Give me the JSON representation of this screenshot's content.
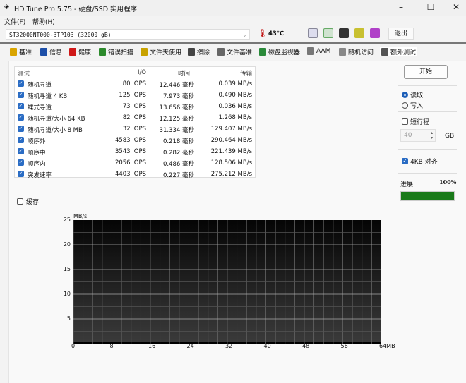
{
  "window": {
    "title": "HD Tune Pro 5.75 - 硬盘/SSD 实用程序",
    "minimize": "–",
    "maximize": "☐",
    "close": "✕"
  },
  "menu": [
    "文件(F)",
    "帮助(H)"
  ],
  "drive": {
    "selected": "ST32000NT000-3TP103 (32000 gB)",
    "temperature": "43℃"
  },
  "toolbar": {
    "exit_label": "退出",
    "icons": [
      "copy-text-icon",
      "copy-image-icon",
      "screenshot-icon",
      "options-icon",
      "save-icon"
    ]
  },
  "tabs": [
    {
      "label": "基准",
      "color": "#d9a400"
    },
    {
      "label": "信息",
      "color": "#1d4fa8"
    },
    {
      "label": "健康",
      "color": "#d01818"
    },
    {
      "label": "错误扫描",
      "color": "#2c8a2c"
    },
    {
      "label": "文件夹使用",
      "color": "#c8a200"
    },
    {
      "label": "擦除",
      "color": "#444"
    },
    {
      "label": "文件基准",
      "color": "#666"
    },
    {
      "label": "磁盘监视器",
      "color": "#2a8a3a"
    },
    {
      "label": "AAM",
      "color": "#777"
    },
    {
      "label": "随机访问",
      "color": "#888"
    },
    {
      "label": "额外测试",
      "color": "#555"
    }
  ],
  "table": {
    "headers": [
      "测试",
      "I/O",
      "时间",
      "传输"
    ],
    "rows": [
      [
        "随机寻道",
        "80 IOPS",
        "12.446 毫秒",
        "0.039 MB/s"
      ],
      [
        "随机寻道 4 KB",
        "125 IOPS",
        "7.973 毫秒",
        "0.490 MB/s"
      ],
      [
        "蝶式寻道",
        "73 IOPS",
        "13.656 毫秒",
        "0.036 MB/s"
      ],
      [
        "随机寻道/大小 64 KB",
        "82 IOPS",
        "12.125 毫秒",
        "1.268 MB/s"
      ],
      [
        "随机寻道/大小 8 MB",
        "32 IOPS",
        "31.334 毫秒",
        "129.407 MB/s"
      ],
      [
        "顺序外",
        "4583 IOPS",
        "0.218 毫秒",
        "290.464 MB/s"
      ],
      [
        "顺序中",
        "3543 IOPS",
        "0.282 毫秒",
        "221.439 MB/s"
      ],
      [
        "顺序内",
        "2056 IOPS",
        "0.486 毫秒",
        "128.506 MB/s"
      ],
      [
        "突发速率",
        "4403 IOPS",
        "0.227 毫秒",
        "275.212 MB/s"
      ]
    ]
  },
  "cache_label": "缓存",
  "side": {
    "start": "开始",
    "read": "读取",
    "write": "写入",
    "short_stroke": "短行程",
    "gb_value": "40",
    "gb_unit": "GB",
    "align_4kb": "4KB 对齐",
    "progress_label": "进展:",
    "progress_text": "100%",
    "progress": 100,
    "progress_color": "#1a7a1a"
  },
  "chart_data": {
    "type": "line",
    "ylabel": "MB/s",
    "ylim": [
      0,
      25
    ],
    "yticks": [
      "25",
      "20",
      "15",
      "10",
      "5"
    ],
    "xlim": [
      0,
      64
    ],
    "xticks": [
      "0",
      "8",
      "16",
      "24",
      "32",
      "40",
      "48",
      "56",
      "64MB"
    ],
    "grid": true,
    "series": []
  }
}
